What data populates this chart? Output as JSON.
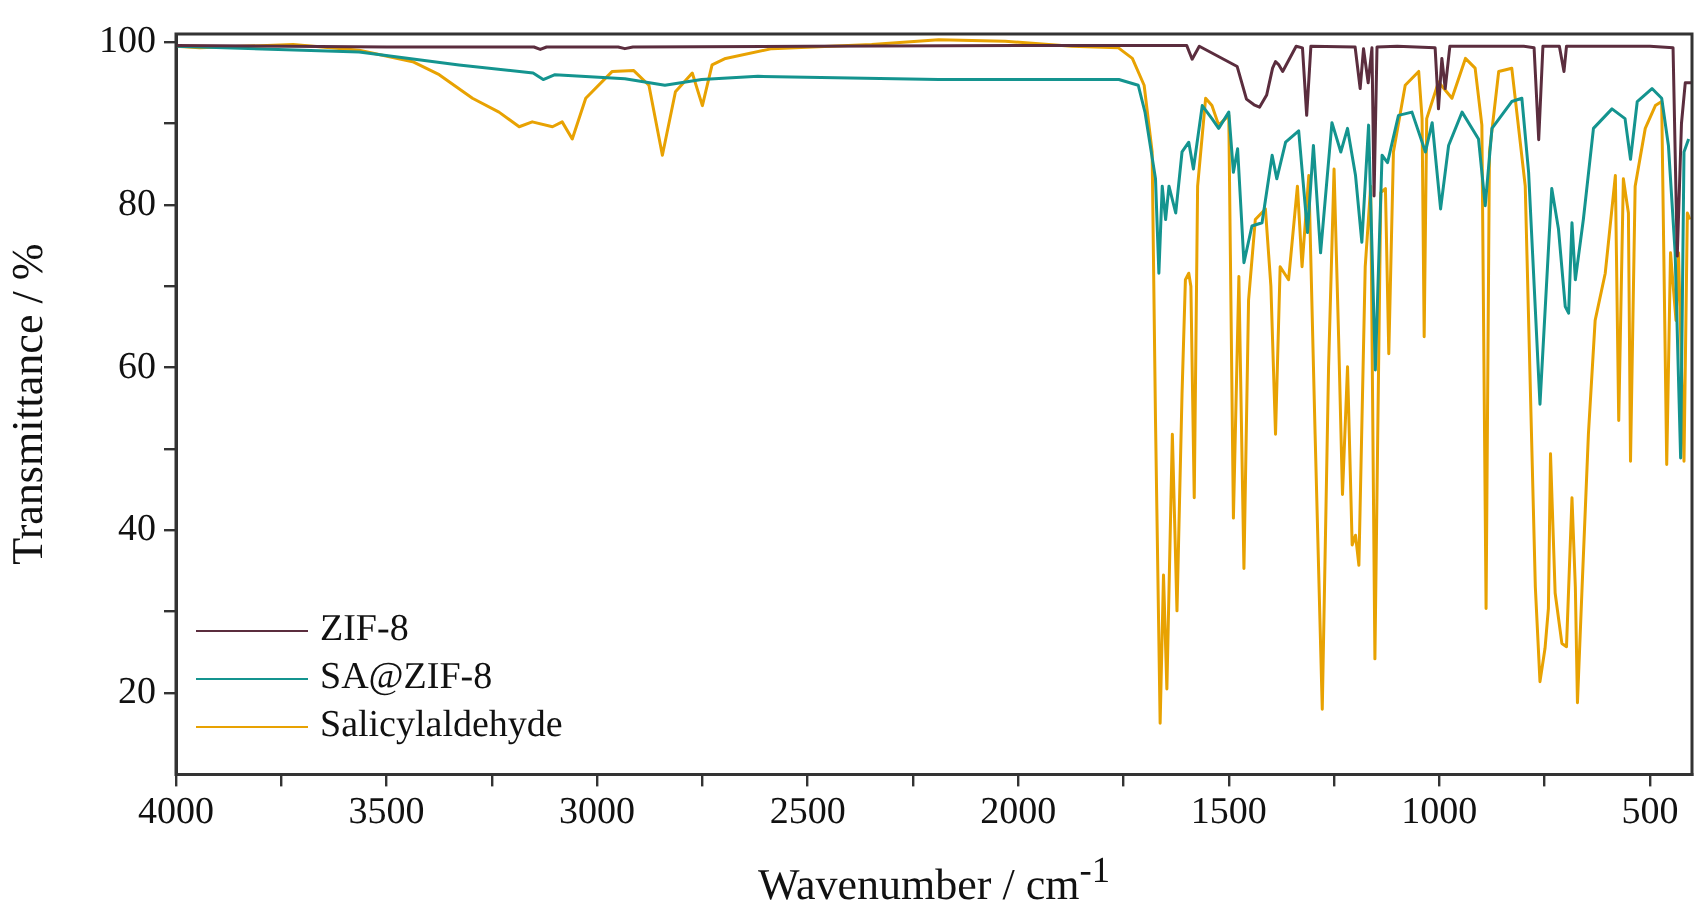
{
  "chart_data": {
    "type": "line",
    "xlabel": "Wavenumber / cm$^{-1}$",
    "ylabel": "Transmittance / %",
    "xlim": [
      4000,
      400
    ],
    "ylim": [
      10,
      101
    ],
    "xticks": [
      4000,
      {
        "value": 3750,
        "label": null
      },
      3500,
      {
        "value": 3250,
        "label": null
      },
      3000,
      {
        "value": 2750,
        "label": null
      },
      2500,
      {
        "value": 2250,
        "label": null
      },
      2000,
      {
        "value": 1750,
        "label": null
      },
      1500,
      {
        "value": 1250,
        "label": null
      },
      1000,
      {
        "value": 750,
        "label": null
      },
      500
    ],
    "yticks": [
      20,
      {
        "value": 30,
        "label": null
      },
      40,
      {
        "value": 50,
        "label": null
      },
      60,
      {
        "value": 70,
        "label": null
      },
      80,
      {
        "value": 90,
        "label": null
      },
      100
    ],
    "grid": false,
    "legend": "bottom left",
    "marker": "none",
    "line_style": "solid",
    "series": [
      {
        "name": "ZIF-8",
        "color": "#5b2d3e",
        "x": [
          4000,
          3500,
          3150,
          3135,
          3120,
          2950,
          2934,
          2915,
          2500,
          2000,
          1700,
          1600,
          1587,
          1570,
          1480,
          1458,
          1440,
          1427,
          1410,
          1396,
          1389,
          1381,
          1372,
          1340,
          1325,
          1315,
          1305,
          1200,
          1188,
          1180,
          1169,
          1160,
          1155,
          1148,
          1100,
          1010,
          1002,
          994,
          986,
          975,
          800,
          775,
          764,
          754,
          715,
          704,
          698,
          500,
          445,
          435,
          425,
          416,
          400
        ],
        "values": [
          99.6,
          99.4,
          99.4,
          99.1,
          99.4,
          99.4,
          99.2,
          99.4,
          99.5,
          99.6,
          99.6,
          99.6,
          97.9,
          99.5,
          97,
          93,
          92.3,
          92,
          93.5,
          96.8,
          97.6,
          97.2,
          96.4,
          99.5,
          99.3,
          91,
          99.5,
          99.4,
          94.3,
          99.2,
          95,
          99.3,
          81.1,
          99.4,
          99.5,
          99.3,
          91.8,
          98,
          94.3,
          99.5,
          99.5,
          99.3,
          88,
          99.5,
          99.5,
          96.4,
          99.5,
          99.5,
          99.3,
          73.7,
          90,
          95,
          95
        ]
      },
      {
        "name": "SA@ZIF-8",
        "color": "#14948f",
        "x": [
          4000,
          3565,
          3328,
          3152,
          3128,
          3100,
          2934,
          2839,
          2752,
          2618,
          2189,
          1761,
          1715,
          1699,
          1674,
          1666,
          1658,
          1650,
          1642,
          1626,
          1611,
          1595,
          1584,
          1563,
          1540,
          1524,
          1500,
          1489,
          1479,
          1464,
          1445,
          1421,
          1397,
          1386,
          1365,
          1334,
          1313,
          1299,
          1282,
          1255,
          1234,
          1218,
          1199,
          1184,
          1168,
          1152,
          1136,
          1123,
          1097,
          1065,
          1033,
          1017,
          997,
          978,
          946,
          907,
          891,
          875,
          828,
          804,
          788,
          761,
          733,
          717,
          701,
          693,
          685,
          677,
          658,
          634,
          590,
          559,
          546,
          530,
          495,
          472,
          456,
          440,
          427,
          419,
          408
        ],
        "values": [
          99.5,
          98.8,
          97.2,
          96.2,
          95.4,
          96,
          95.5,
          94.7,
          95.4,
          95.8,
          95.4,
          95.4,
          94.7,
          91.4,
          83.2,
          71.6,
          82.3,
          78.2,
          82.3,
          79,
          86.5,
          87.7,
          84.4,
          92.2,
          90.6,
          89.4,
          91.4,
          84,
          86.9,
          72.9,
          77.4,
          77.8,
          86.1,
          83.2,
          87.7,
          89.1,
          76.6,
          87.3,
          74.1,
          90.1,
          86.5,
          89.4,
          83.6,
          75.4,
          89.8,
          59.7,
          86.1,
          85.2,
          91,
          91.4,
          86.5,
          90.1,
          79.5,
          87.3,
          91.4,
          88.1,
          79.9,
          89.4,
          92.7,
          93.1,
          84,
          55.5,
          82,
          77,
          67.5,
          66.7,
          77.8,
          70.8,
          78.2,
          89.4,
          91.8,
          90.6,
          85.6,
          92.7,
          94.3,
          93.1,
          87.3,
          74.1,
          48.9,
          86.5,
          88.1
        ]
      },
      {
        "name": "Salicylaldehyde",
        "color": "#e8a202",
        "x": [
          4000,
          3944,
          3722,
          3565,
          3438,
          3375,
          3296,
          3233,
          3185,
          3154,
          3106,
          3083,
          3059,
          3027,
          2964,
          2913,
          2877,
          2845,
          2814,
          2774,
          2750,
          2727,
          2695,
          2585,
          2348,
          2189,
          2031,
          1873,
          1762,
          1729,
          1701,
          1682,
          1674,
          1663,
          1655,
          1647,
          1634,
          1623,
          1611,
          1603,
          1595,
          1590,
          1582,
          1574,
          1555,
          1540,
          1524,
          1500,
          1489,
          1476,
          1464,
          1453,
          1437,
          1413,
          1400,
          1389,
          1378,
          1358,
          1337,
          1326,
          1310,
          1295,
          1278,
          1263,
          1250,
          1239,
          1230,
          1218,
          1207,
          1199,
          1191,
          1176,
          1163,
          1153,
          1139,
          1128,
          1120,
          1109,
          1081,
          1049,
          1041,
          1036,
          1030,
          1002,
          970,
          938,
          915,
          899,
          889,
          881,
          859,
          828,
          796,
          772,
          761,
          749,
          741,
          736,
          725,
          709,
          698,
          685,
          677,
          672,
          661,
          646,
          630,
          606,
          582,
          574,
          563,
          551,
          546,
          535,
          511,
          487,
          472,
          460,
          451,
          438,
          432,
          419,
          411,
          405
        ],
        "values": [
          99.5,
          99.3,
          99.7,
          99,
          97.6,
          96,
          93.1,
          91.4,
          89.6,
          90.2,
          89.6,
          90.2,
          88.1,
          93.1,
          96.4,
          96.5,
          94.7,
          86.1,
          93.9,
          96.2,
          92.2,
          97.2,
          98,
          99.2,
          99.7,
          100.3,
          100.1,
          99.5,
          99.3,
          98,
          94.7,
          86.5,
          53.5,
          16.3,
          34.5,
          20.5,
          51.8,
          30.1,
          56.8,
          70.8,
          71.6,
          70,
          44,
          82.3,
          93.1,
          92.2,
          89.8,
          91,
          41.5,
          71.2,
          35.3,
          68.3,
          78.2,
          79.5,
          70,
          51.8,
          72.4,
          70.8,
          82.3,
          72.4,
          83.6,
          51.8,
          18,
          60.1,
          84.4,
          63.4,
          44.4,
          60.1,
          38.2,
          39.4,
          35.7,
          72.4,
          82.3,
          24.2,
          81.5,
          82,
          61.7,
          86.5,
          94.7,
          96.4,
          90.6,
          63.8,
          90.6,
          95.1,
          93.1,
          98,
          96.8,
          89.8,
          30.4,
          86.5,
          96.4,
          96.8,
          82.3,
          33,
          21.4,
          25.5,
          30.4,
          49.4,
          32.3,
          26.1,
          25.7,
          44,
          33,
          18.8,
          33,
          51.8,
          65.8,
          71.6,
          83.6,
          53.5,
          83.2,
          79,
          48.5,
          82.3,
          89.4,
          92.2,
          92.7,
          48.1,
          74.1,
          65.8,
          74.1,
          48.5,
          79,
          78.2
        ]
      }
    ]
  }
}
